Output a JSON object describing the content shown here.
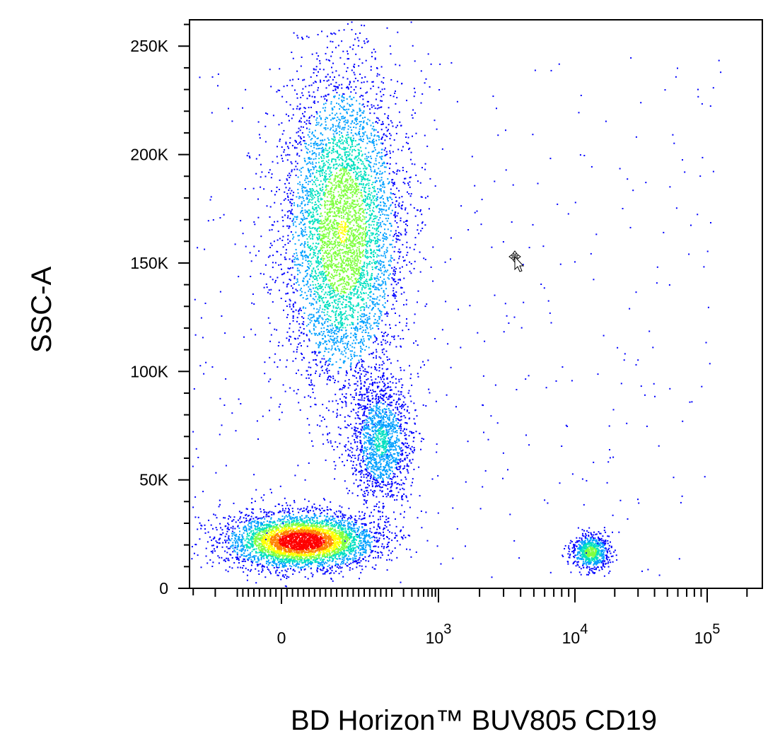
{
  "chart_data": {
    "type": "scatter",
    "style": "flow-cytometry-pseudocolor-density",
    "xlabel": "BD Horizon™ BUV805 CD19",
    "ylabel": "SSC-A",
    "x_scale": "biexponential",
    "y_scale": "linear",
    "ylim": [
      0,
      262144
    ],
    "xlim": [
      -300,
      262144
    ],
    "y_ticks": [
      {
        "value": 0,
        "label": "0"
      },
      {
        "value": 50000,
        "label": "50K"
      },
      {
        "value": 100000,
        "label": "100K"
      },
      {
        "value": 150000,
        "label": "150K"
      },
      {
        "value": 200000,
        "label": "200K"
      },
      {
        "value": 250000,
        "label": "250K"
      }
    ],
    "x_ticks": [
      {
        "value": 0,
        "base": "0",
        "exp": ""
      },
      {
        "value": 1000,
        "base": "10",
        "exp": "3"
      },
      {
        "value": 10000,
        "base": "10",
        "exp": "4"
      },
      {
        "value": 100000,
        "base": "10",
        "exp": "5"
      }
    ],
    "density_colors": [
      "#0000ff",
      "#00a0ff",
      "#00e0c0",
      "#80ff40",
      "#ffff00",
      "#ff8000",
      "#ff0000"
    ],
    "populations": [
      {
        "name": "",
        "x_center": 35,
        "y_center": 22000,
        "x_spread": 120,
        "y_spread": 7000,
        "count": 4200,
        "density_peak": 1.0
      },
      {
        "name": "",
        "x_center": 110,
        "y_center": 165000,
        "x_spread": 130,
        "y_spread": 42000,
        "count": 5200,
        "density_peak": 0.55
      },
      {
        "name": "",
        "x_center": 180,
        "y_center": 68000,
        "x_spread": 180,
        "y_spread": 16000,
        "count": 1500,
        "density_peak": 0.3
      },
      {
        "name": "",
        "x_center": 13000,
        "y_center": 17000,
        "x_spread": 4500,
        "y_spread": 4500,
        "count": 700,
        "density_peak": 0.5
      }
    ]
  }
}
